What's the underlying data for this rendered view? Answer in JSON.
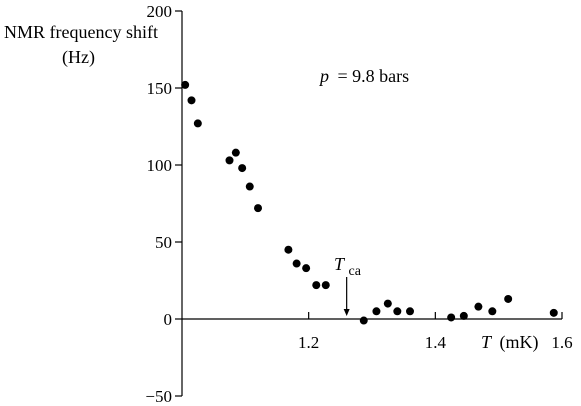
{
  "chart_data": {
    "type": "scatter",
    "title": "",
    "ylabel_line1": "NMR frequency shift",
    "ylabel_line2": "(Hz)",
    "xlabel_symbol": "T",
    "xlabel_unit": "(mK)",
    "pressure_symbol": "p",
    "pressure_text": "= 9.8 bars",
    "marker_symbol": "T",
    "marker_subscript": "ca",
    "marker_x": 1.26,
    "xlim": [
      1.0,
      1.6
    ],
    "ylim": [
      -50,
      200
    ],
    "xticks": [
      1.2,
      1.4,
      1.6
    ],
    "xtick_labels": [
      "1.2",
      "1.4",
      "1.6"
    ],
    "yticks": [
      -50,
      0,
      50,
      100,
      150,
      200
    ],
    "ytick_labels": [
      "−50",
      "0",
      "50",
      "100",
      "150",
      "200"
    ],
    "grid": false,
    "series": [
      {
        "points": [
          {
            "x": 1.005,
            "y": 152
          },
          {
            "x": 1.015,
            "y": 142
          },
          {
            "x": 1.025,
            "y": 127
          },
          {
            "x": 1.075,
            "y": 103
          },
          {
            "x": 1.085,
            "y": 108
          },
          {
            "x": 1.095,
            "y": 98
          },
          {
            "x": 1.107,
            "y": 86
          },
          {
            "x": 1.12,
            "y": 72
          },
          {
            "x": 1.168,
            "y": 45
          },
          {
            "x": 1.181,
            "y": 36
          },
          {
            "x": 1.196,
            "y": 33
          },
          {
            "x": 1.212,
            "y": 22
          },
          {
            "x": 1.227,
            "y": 22
          },
          {
            "x": 1.287,
            "y": -1
          },
          {
            "x": 1.307,
            "y": 5
          },
          {
            "x": 1.325,
            "y": 10
          },
          {
            "x": 1.34,
            "y": 5
          },
          {
            "x": 1.36,
            "y": 5
          },
          {
            "x": 1.425,
            "y": 1
          },
          {
            "x": 1.445,
            "y": 2
          },
          {
            "x": 1.468,
            "y": 8
          },
          {
            "x": 1.49,
            "y": 5
          },
          {
            "x": 1.515,
            "y": 13
          },
          {
            "x": 1.587,
            "y": 4
          }
        ],
        "color": "#000000"
      }
    ]
  }
}
